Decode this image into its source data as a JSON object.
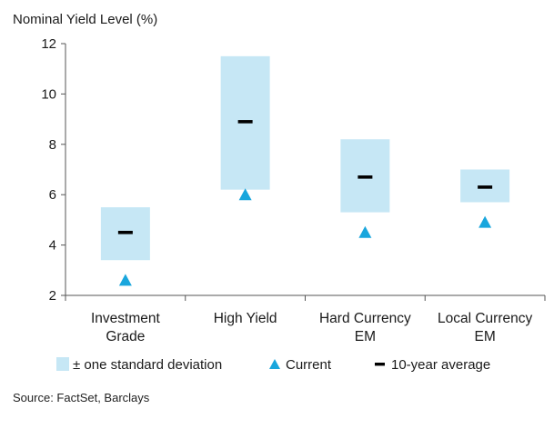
{
  "chart_data": {
    "type": "range",
    "ylabel": "Nominal Yield Level (%)",
    "ylim": [
      2,
      12
    ],
    "yticks": [
      "2",
      "4",
      "6",
      "8",
      "10",
      "12"
    ],
    "categories": [
      [
        "Investment",
        "Grade"
      ],
      [
        "High Yield"
      ],
      [
        "Hard Currency",
        "EM"
      ],
      [
        "Local Currency",
        "EM"
      ]
    ],
    "series": [
      {
        "name": "± one standard deviation",
        "low": [
          3.4,
          6.2,
          5.3,
          5.7
        ],
        "high": [
          5.5,
          11.5,
          8.2,
          7.0
        ]
      },
      {
        "name": "Current",
        "values": [
          2.6,
          6.0,
          4.5,
          4.9
        ]
      },
      {
        "name": "10-year average",
        "values": [
          4.5,
          8.9,
          6.7,
          6.3
        ]
      }
    ],
    "legend_position": "bottom",
    "colors": {
      "band": "#c6e7f5",
      "current": "#19a6dd",
      "average": "#000000",
      "axis": "#555555"
    }
  },
  "source": "Source: FactSet, Barclays"
}
